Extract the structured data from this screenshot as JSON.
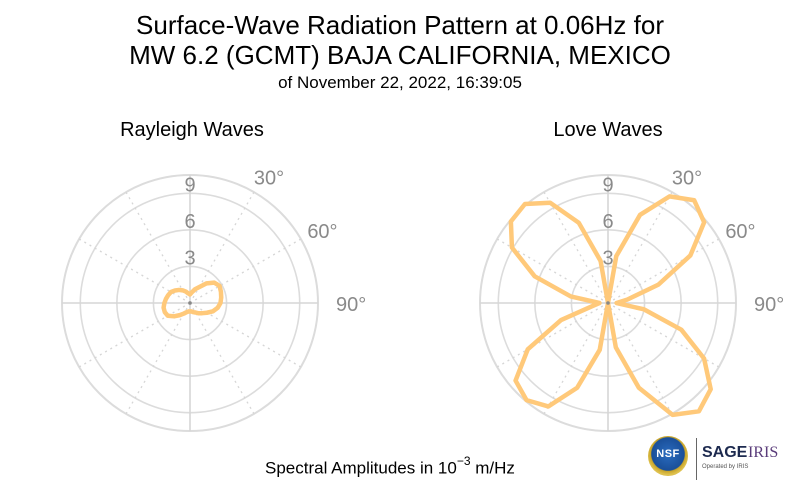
{
  "chart_data": [
    {
      "type": "polar-line",
      "title": "Rayleigh Waves",
      "radial_ticks": [
        3,
        6,
        9
      ],
      "radial_max": 10.5,
      "angle_tick_labels": [
        "30°",
        "60°",
        "90°"
      ],
      "angular_gridlines_every_deg": 30,
      "radial_grid": true,
      "series_color": "#ffc97a",
      "series": [
        {
          "azimuth_deg": [
            0,
            10,
            20,
            30,
            40,
            50,
            60,
            70,
            80,
            90,
            100,
            110,
            120,
            130,
            140,
            150,
            160,
            170,
            180,
            190,
            200,
            210,
            220,
            230,
            240,
            250,
            260,
            270,
            280,
            290,
            300,
            310,
            320,
            330,
            340,
            350,
            360
          ],
          "amplitude": [
            0.7,
            0.9,
            1.2,
            1.5,
            2.1,
            2.6,
            2.8,
            2.7,
            2.6,
            2.5,
            2.3,
            2.0,
            1.6,
            1.3,
            1.1,
            0.9,
            0.8,
            0.7,
            0.7,
            0.7,
            0.8,
            1.0,
            1.3,
            1.7,
            2.1,
            2.2,
            2.2,
            2.1,
            2.0,
            1.9,
            1.8,
            1.6,
            1.4,
            1.2,
            1.0,
            0.8,
            0.7
          ]
        }
      ]
    },
    {
      "type": "polar-line",
      "title": "Love Waves",
      "radial_ticks": [
        3,
        6,
        9
      ],
      "radial_max": 10.5,
      "angle_tick_labels": [
        "30°",
        "60°",
        "90°"
      ],
      "angular_gridlines_every_deg": 30,
      "radial_grid": true,
      "series_color": "#ffc97a",
      "series": [
        {
          "azimuth_deg": [
            0,
            10,
            20,
            30,
            40,
            50,
            60,
            70,
            80,
            90,
            100,
            110,
            120,
            130,
            140,
            150,
            160,
            170,
            180,
            190,
            200,
            210,
            220,
            230,
            240,
            250,
            260,
            270,
            280,
            290,
            300,
            310,
            320,
            330,
            340,
            350,
            360
          ],
          "amplitude": [
            0.0,
            3.9,
            7.7,
            10.1,
            11.0,
            10.3,
            7.8,
            4.4,
            1.6,
            0.7,
            3.0,
            6.4,
            9.1,
            11.0,
            11.6,
            10.6,
            7.4,
            3.7,
            0.0,
            3.9,
            7.4,
            9.8,
            10.4,
            9.9,
            7.6,
            4.1,
            1.2,
            0.7,
            3.1,
            6.4,
            9.1,
            10.4,
            10.6,
            9.5,
            7.0,
            3.5,
            0.0
          ]
        }
      ]
    }
  ],
  "header": {
    "title_line1": "Surface-Wave Radiation Pattern at 0.06Hz for",
    "title_line2": "MW 6.2 (GCMT) BAJA CALIFORNIA, MEXICO",
    "subtitle": "of November 22, 2022, 16:39:05"
  },
  "footer": {
    "label_prefix": "Spectral Amplitudes in 10",
    "label_exponent": "−3",
    "label_suffix": " m/Hz"
  },
  "logos": {
    "nsf": "NSF",
    "sage": "SAGE",
    "iris": "IRIS",
    "operated_by": "Operated by IRIS"
  }
}
